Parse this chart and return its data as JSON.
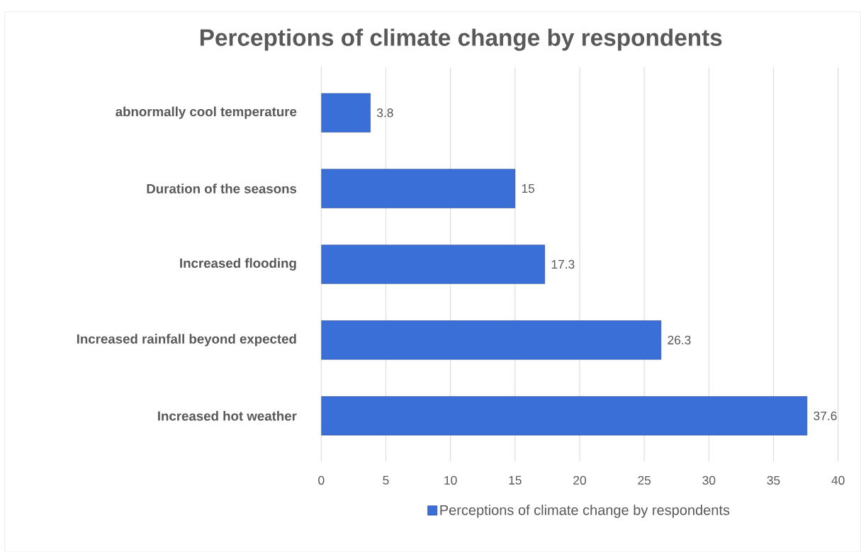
{
  "chart_data": {
    "type": "bar",
    "orientation": "horizontal",
    "title": "Perceptions of climate change by respondents",
    "categories": [
      "abnormally cool temperature",
      "Duration of the seasons",
      "Increased flooding",
      "Increased rainfall beyond expected",
      "Increased hot weather"
    ],
    "series": [
      {
        "name": "Perceptions of climate change by respondents",
        "color": "#3a6fd8",
        "values": [
          3.8,
          15,
          17.3,
          26.3,
          37.6
        ]
      }
    ],
    "xlim": [
      0,
      40
    ],
    "xticks": [
      0,
      5,
      10,
      15,
      20,
      25,
      30,
      35,
      40
    ],
    "grid": "x",
    "data_labels": true,
    "legend": "bottom"
  }
}
